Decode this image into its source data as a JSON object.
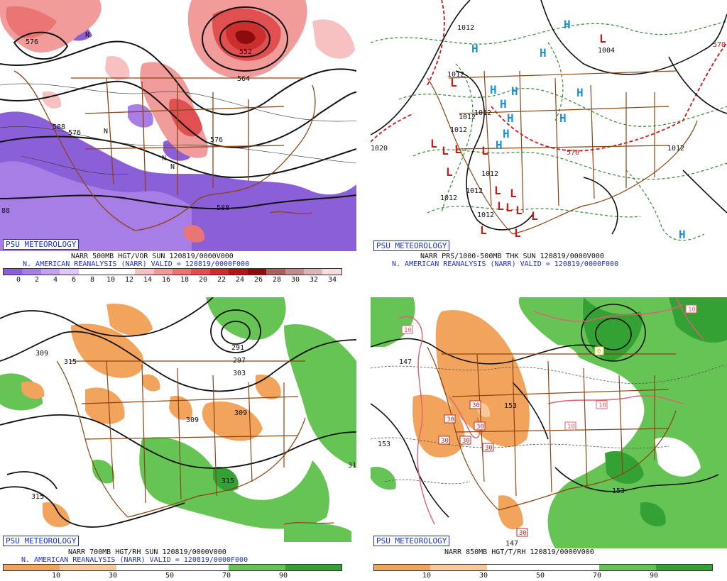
{
  "panels": {
    "p1": {
      "brand": "PSU METEOROLOGY",
      "line1": "NARR 500MB HGT/VOR SUN 120819/0000V000",
      "line2": "N. AMERICAN REANALYSIS (NARR) VALID = 120819/0000F000",
      "scale_ticks": [
        "0",
        "2",
        "4",
        "6",
        "8",
        "10",
        "12",
        "14",
        "16",
        "18",
        "20",
        "22",
        "24",
        "26",
        "28",
        "30",
        "32",
        "34"
      ],
      "labels": [
        "576",
        "552",
        "564",
        "576",
        "588",
        "588",
        "576",
        "N",
        "N",
        "N",
        "N",
        "88"
      ]
    },
    "p2": {
      "brand": "PSU METEOROLOGY",
      "line1": "NARR PRS/1000-500MB THK SUN 120819/0000V000",
      "line2": "N. AMERICAN REANALYSIS (NARR) VALID = 120819/0000F000",
      "labels": [
        "1012",
        "1012",
        "1012",
        "1012",
        "1012",
        "1012",
        "1012",
        "1012",
        "1012",
        "1012",
        "1020",
        "1004",
        "570",
        "570"
      ],
      "highs": [
        "H",
        "H",
        "H",
        "H",
        "H",
        "H",
        "H",
        "H",
        "H",
        "H",
        "H",
        "H"
      ],
      "lows": [
        "L",
        "L",
        "L",
        "L",
        "L",
        "L",
        "L",
        "L",
        "L",
        "L",
        "L",
        "L",
        "L",
        "L",
        "L"
      ]
    },
    "p3": {
      "brand": "PSU METEOROLOGY",
      "line1": "NARR 700MB HGT/RH SUN 120819/0000V000",
      "line2": "N. AMERICAN REANALYSIS (NARR) VALID = 120819/0000F000",
      "scale_ticks": [
        "10",
        "30",
        "50",
        "70",
        "90"
      ],
      "labels": [
        "309",
        "315",
        "291",
        "297",
        "303",
        "309",
        "309",
        "315",
        "315",
        "31"
      ]
    },
    "p4": {
      "brand": "PSU METEOROLOGY",
      "line1": "NARR 850MB HGT/T/RH 120819/0000V000",
      "scale_ticks": [
        "10",
        "30",
        "50",
        "70",
        "90"
      ],
      "labels": [
        "147",
        "153",
        "153",
        "153",
        "147",
        "10",
        "10",
        "10",
        "10",
        "30",
        "30",
        "30",
        "30",
        "30",
        "30",
        "30",
        "0"
      ]
    }
  },
  "colors": {
    "vort_scale": [
      "#8b5fd8",
      "#a77de6",
      "#c3a0f0",
      "#ddc6f8",
      "#ffffff",
      "#ffffff",
      "#ffffff",
      "#f7c1c1",
      "#f19b9b",
      "#e97575",
      "#e05050",
      "#cc2e2e",
      "#b01818",
      "#8a0c0c",
      "#a96060",
      "#c38c8c",
      "#dcb6b6",
      "#f3dddd"
    ],
    "rh_scale": [
      "#f3a45c",
      "#f7c89a",
      "#ffffff",
      "#ffffff",
      "#66c455",
      "#34a134"
    ]
  }
}
